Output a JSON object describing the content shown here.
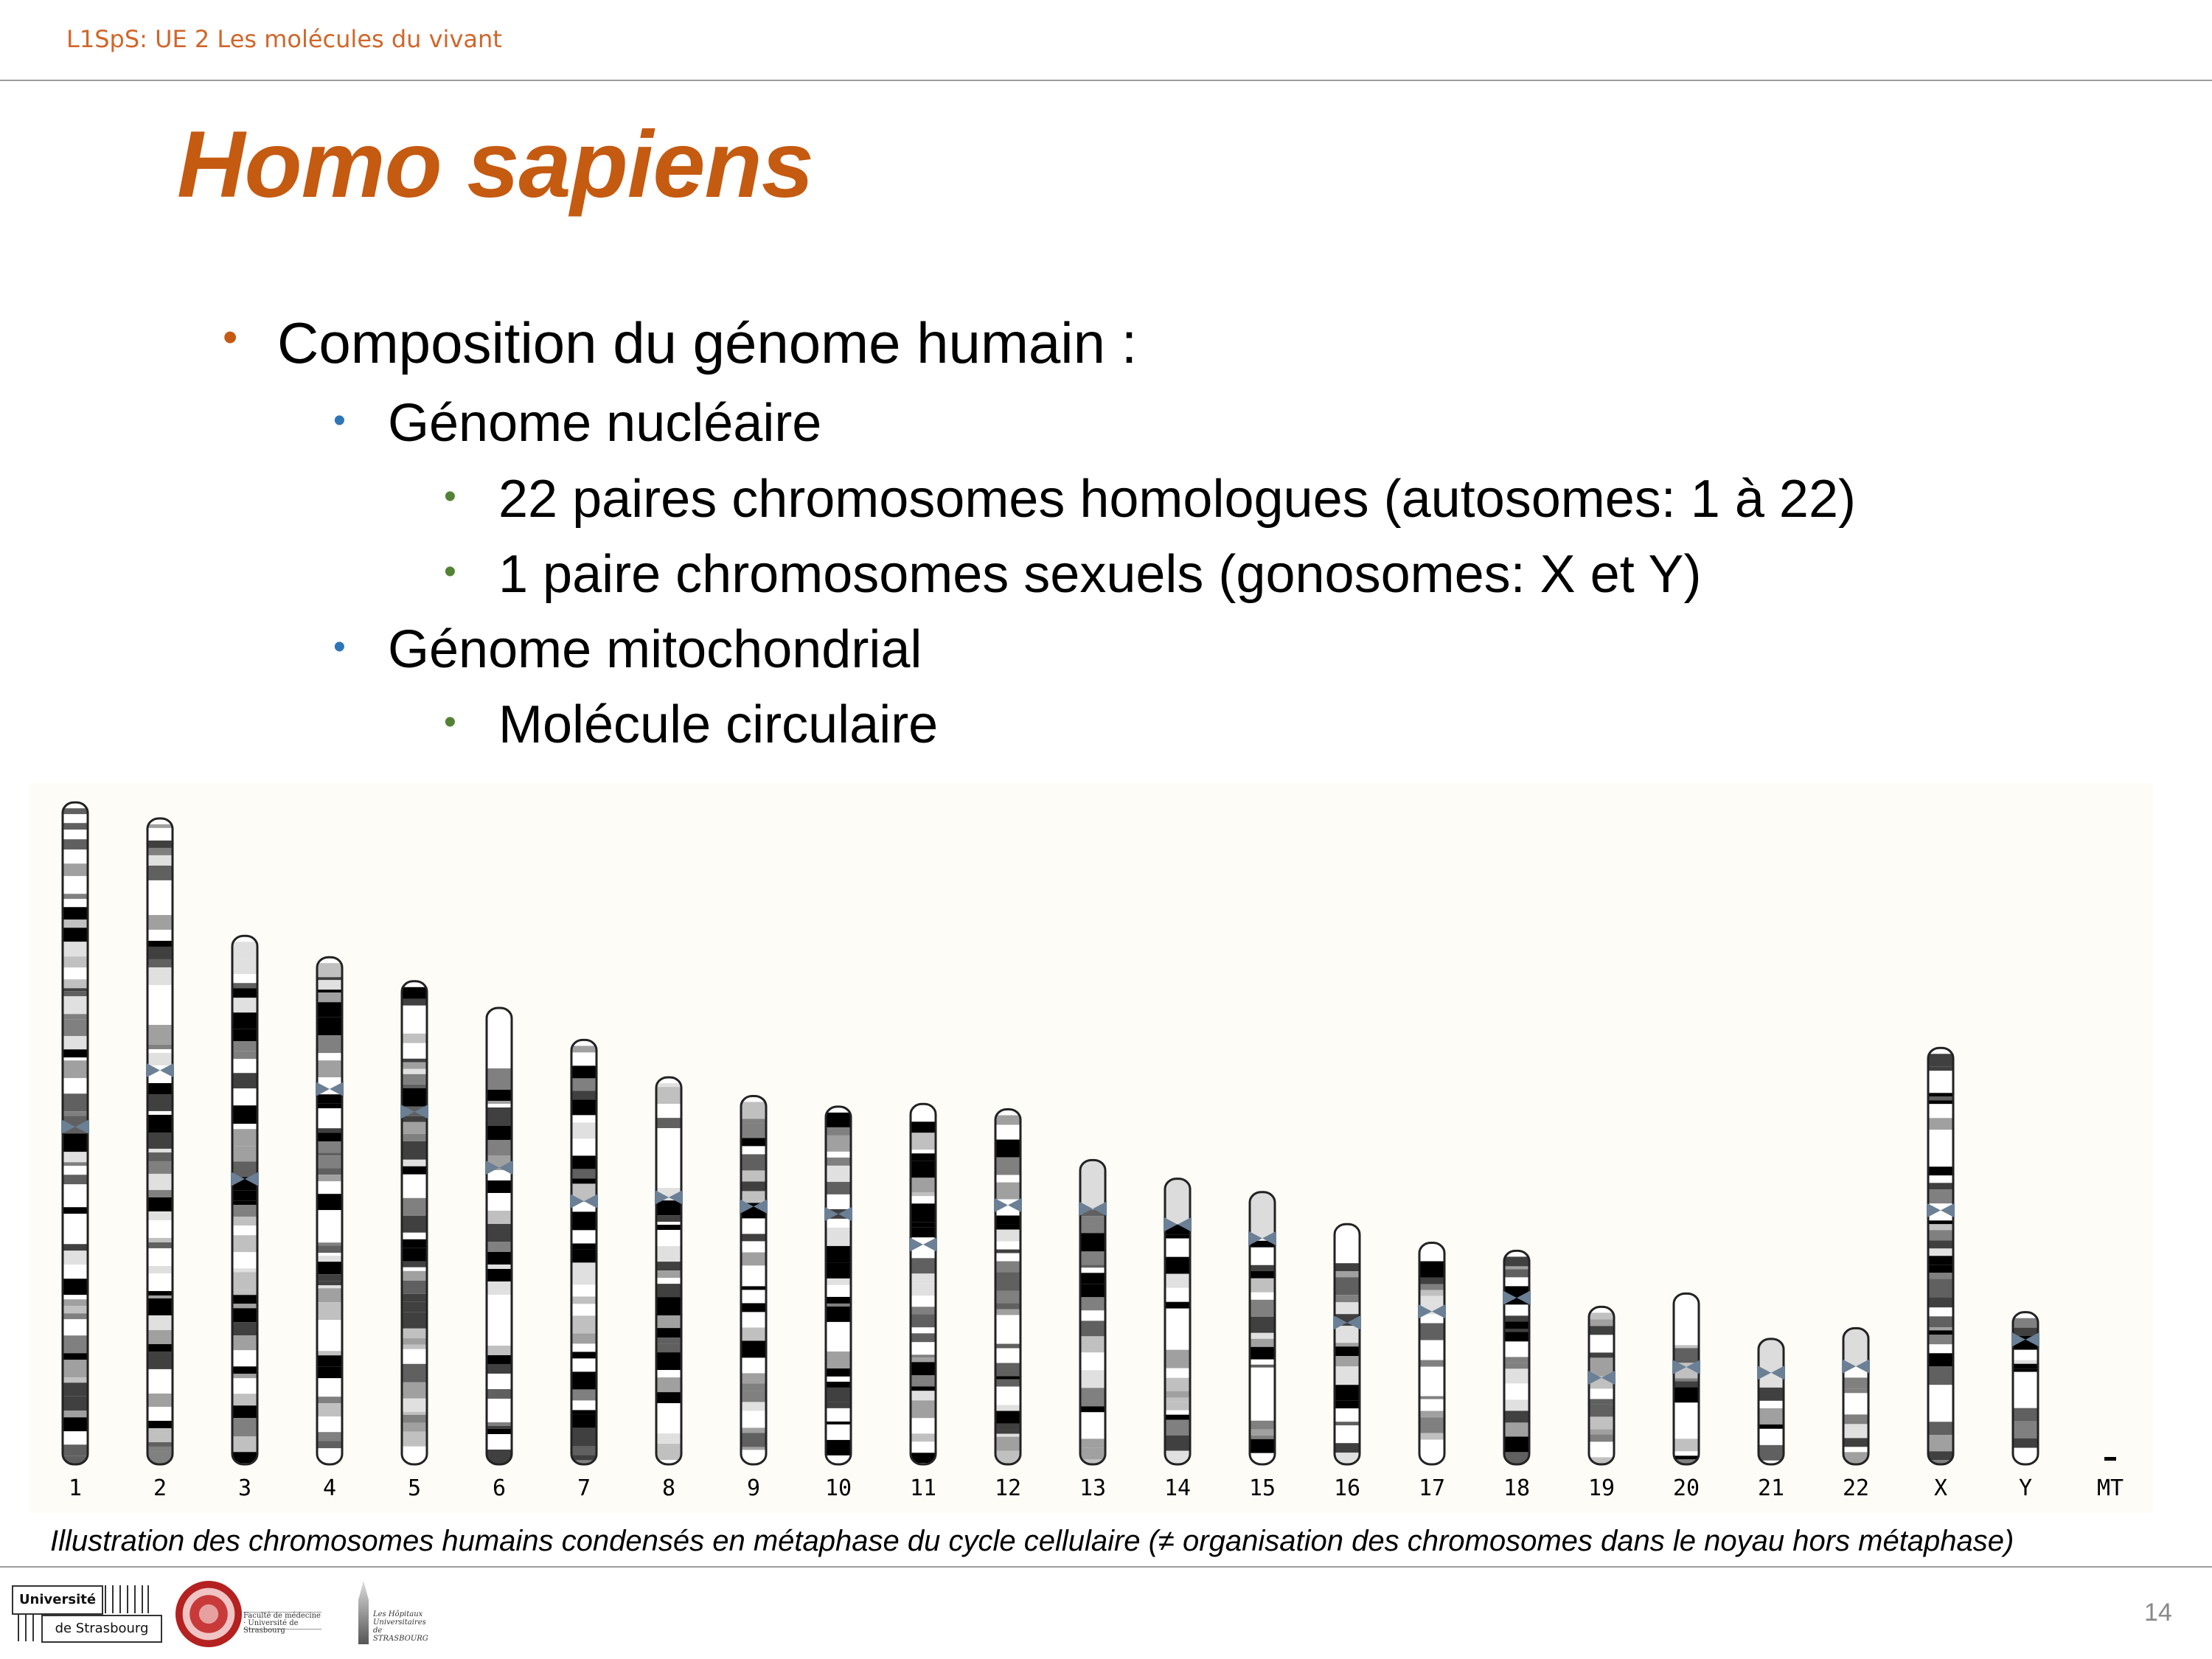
{
  "header": {
    "course": "L1SpS: UE 2 Les molécules du vivant",
    "title": "Homo sapiens"
  },
  "bullets": [
    {
      "level": 0,
      "marker": "•",
      "text": "Composition du génome humain :"
    },
    {
      "level": 1,
      "marker": "•",
      "text": "Génome nucléaire"
    },
    {
      "level": 2,
      "marker": "•",
      "text": "22 paires chromosomes homologues (autosomes: 1 à 22)"
    },
    {
      "level": 2,
      "marker": "•",
      "text": "1 paire chromosomes sexuels (gonosomes: X et Y)"
    },
    {
      "level": 1,
      "marker": "•",
      "text": "Génome mitochondrial"
    },
    {
      "level": 2,
      "marker": "•",
      "text": "Molécule circulaire"
    }
  ],
  "karyotype": {
    "chromosomes": [
      {
        "label": "1",
        "length": 248,
        "centromere": 0.49,
        "acro": false
      },
      {
        "label": "2",
        "length": 242,
        "centromere": 0.39,
        "acro": false
      },
      {
        "label": "3",
        "length": 198,
        "centromere": 0.46,
        "acro": false
      },
      {
        "label": "4",
        "length": 190,
        "centromere": 0.26,
        "acro": false
      },
      {
        "label": "5",
        "length": 181,
        "centromere": 0.27,
        "acro": false
      },
      {
        "label": "6",
        "length": 171,
        "centromere": 0.35,
        "acro": false
      },
      {
        "label": "7",
        "length": 159,
        "centromere": 0.38,
        "acro": false
      },
      {
        "label": "8",
        "length": 145,
        "centromere": 0.31,
        "acro": false
      },
      {
        "label": "9",
        "length": 138,
        "centromere": 0.3,
        "acro": false
      },
      {
        "label": "10",
        "length": 134,
        "centromere": 0.3,
        "acro": false
      },
      {
        "label": "11",
        "length": 135,
        "centromere": 0.39,
        "acro": false
      },
      {
        "label": "12",
        "length": 133,
        "centromere": 0.27,
        "acro": false
      },
      {
        "label": "13",
        "length": 114,
        "centromere": 0.16,
        "acro": true
      },
      {
        "label": "14",
        "length": 107,
        "centromere": 0.16,
        "acro": true
      },
      {
        "label": "15",
        "length": 102,
        "centromere": 0.17,
        "acro": true
      },
      {
        "label": "16",
        "length": 90,
        "centromere": 0.41,
        "acro": false
      },
      {
        "label": "17",
        "length": 83,
        "centromere": 0.31,
        "acro": false
      },
      {
        "label": "18",
        "length": 80,
        "centromere": 0.22,
        "acro": false
      },
      {
        "label": "19",
        "length": 59,
        "centromere": 0.45,
        "acro": false
      },
      {
        "label": "20",
        "length": 64,
        "centromere": 0.43,
        "acro": false
      },
      {
        "label": "21",
        "length": 47,
        "centromere": 0.27,
        "acro": true
      },
      {
        "label": "22",
        "length": 51,
        "centromere": 0.28,
        "acro": true
      },
      {
        "label": "X",
        "length": 156,
        "centromere": 0.39,
        "acro": false
      },
      {
        "label": "Y",
        "length": 57,
        "centromere": 0.18,
        "acro": false
      },
      {
        "label": "MT",
        "length": 0,
        "centromere": 0,
        "acro": false
      }
    ]
  },
  "caption": "Illustration des chromosomes humains condensés en métaphase du cycle cellulaire (≠ organisation des chromosomes dans le noyau hors métaphase)",
  "footer": {
    "page_number": "14",
    "logo_uds_line1": "Université",
    "logo_uds_line2": "de Strasbourg",
    "logo_med_text": "Faculté de médecine · Université de Strasbourg",
    "logo_hus_text": "Les Hôpitaux Universitaires de STRASBOURG"
  },
  "colors": {
    "title": "#c55a11",
    "header": "#d0662a",
    "bullet_level0": "#c55a11",
    "bullet_level1": "#2e75b6",
    "bullet_level2": "#548235",
    "panel_bg": "#fdfcf7"
  }
}
